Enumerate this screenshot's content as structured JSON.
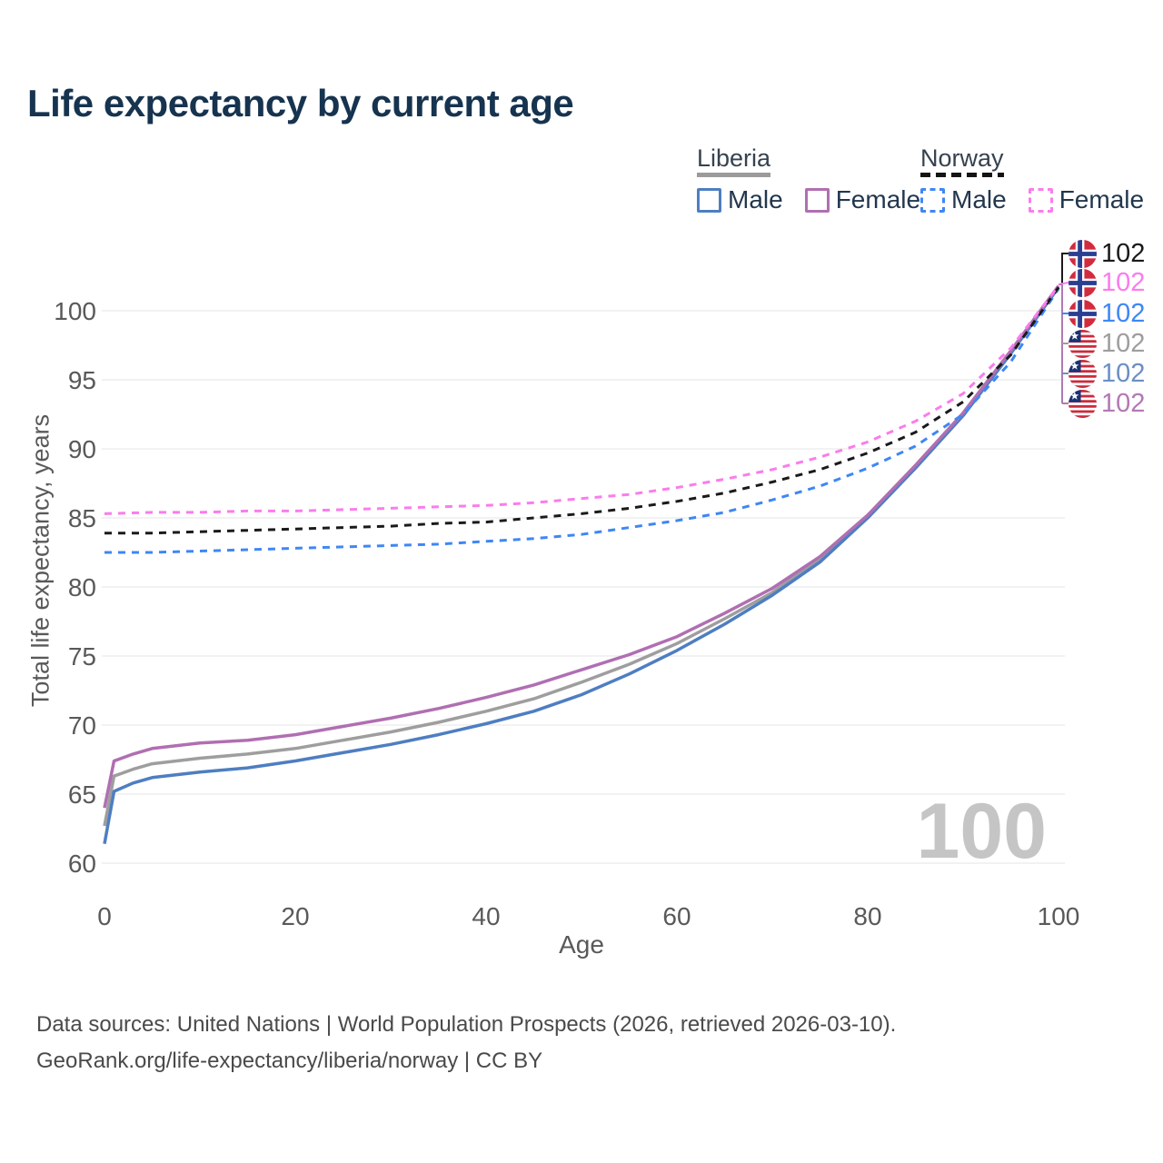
{
  "title": "Life expectancy by current age",
  "legend": {
    "groups": [
      {
        "label": "Liberia",
        "line_style": "solid",
        "underline_color": "#9b9b9b",
        "items": [
          {
            "label": "Male",
            "color": "#4e7ec1"
          },
          {
            "label": "Female",
            "color": "#b06fb2"
          }
        ]
      },
      {
        "label": "Norway",
        "line_style": "dashed",
        "underline_color": "#1a1a1a",
        "items": [
          {
            "label": "Male",
            "color": "#3e87f5"
          },
          {
            "label": "Female",
            "color": "#fb7cec"
          }
        ]
      }
    ]
  },
  "axes": {
    "x": {
      "label": "Age",
      "ticks": [
        0,
        20,
        40,
        60,
        80,
        100
      ],
      "range": [
        0,
        100
      ]
    },
    "y": {
      "label": "Total life expectancy, years",
      "ticks": [
        60,
        65,
        70,
        75,
        80,
        85,
        90,
        95,
        100
      ],
      "range": [
        58.5,
        103
      ]
    }
  },
  "watermark": "100",
  "end_labels": [
    {
      "flag": "norway",
      "series": "Norway Both sexes",
      "value": "102",
      "color": "#1a1a1a"
    },
    {
      "flag": "norway",
      "series": "Norway Female",
      "value": "102",
      "color": "#fb7cec"
    },
    {
      "flag": "norway",
      "series": "Norway Male",
      "value": "102",
      "color": "#3e87f5"
    },
    {
      "flag": "liberia",
      "series": "Liberia Both sexes",
      "value": "102",
      "color": "#9e9e9e"
    },
    {
      "flag": "liberia",
      "series": "Liberia Male",
      "value": "102",
      "color": "#6c8fc5"
    },
    {
      "flag": "liberia",
      "series": "Liberia Female",
      "value": "102",
      "color": "#b279b5"
    }
  ],
  "footer": {
    "line1": "Data sources: United Nations | World Population Prospects (2026, retrieved 2026-03-10).",
    "line2": "GeoRank.org/life-expectancy/liberia/norway | CC BY"
  },
  "chart_data": {
    "type": "line",
    "title": "Life expectancy by current age",
    "xlabel": "Age",
    "ylabel": "Total life expectancy, years",
    "xlim": [
      0,
      100
    ],
    "ylim": [
      58.5,
      103
    ],
    "grid": "horizontal",
    "legend_position": "top-right",
    "series": [
      {
        "name": "Liberia Both sexes",
        "country": "Liberia",
        "sex": "both",
        "color": "#9e9e9e",
        "dashed": false,
        "points": [
          [
            0,
            62.7
          ],
          [
            1,
            66.3
          ],
          [
            3,
            66.8
          ],
          [
            5,
            67.2
          ],
          [
            10,
            67.6
          ],
          [
            15,
            67.9
          ],
          [
            20,
            68.3
          ],
          [
            25,
            68.9
          ],
          [
            30,
            69.5
          ],
          [
            35,
            70.2
          ],
          [
            40,
            71.0
          ],
          [
            45,
            71.9
          ],
          [
            50,
            73.1
          ],
          [
            55,
            74.4
          ],
          [
            60,
            75.9
          ],
          [
            65,
            77.7
          ],
          [
            70,
            79.6
          ],
          [
            75,
            82.0
          ],
          [
            80,
            85.1
          ],
          [
            85,
            88.7
          ],
          [
            90,
            92.5
          ],
          [
            95,
            97.0
          ],
          [
            100,
            101.7
          ]
        ]
      },
      {
        "name": "Liberia Male",
        "country": "Liberia",
        "sex": "male",
        "color": "#4e7ec1",
        "dashed": false,
        "points": [
          [
            0,
            61.4
          ],
          [
            1,
            65.2
          ],
          [
            3,
            65.8
          ],
          [
            5,
            66.2
          ],
          [
            10,
            66.6
          ],
          [
            15,
            66.9
          ],
          [
            20,
            67.4
          ],
          [
            25,
            68.0
          ],
          [
            30,
            68.6
          ],
          [
            35,
            69.3
          ],
          [
            40,
            70.1
          ],
          [
            45,
            71.0
          ],
          [
            50,
            72.2
          ],
          [
            55,
            73.7
          ],
          [
            60,
            75.4
          ],
          [
            65,
            77.3
          ],
          [
            70,
            79.4
          ],
          [
            75,
            81.8
          ],
          [
            80,
            85.0
          ],
          [
            85,
            88.6
          ],
          [
            90,
            92.4
          ],
          [
            95,
            96.9
          ],
          [
            100,
            101.7
          ]
        ]
      },
      {
        "name": "Liberia Female",
        "country": "Liberia",
        "sex": "female",
        "color": "#b06fb2",
        "dashed": false,
        "points": [
          [
            0,
            64.0
          ],
          [
            1,
            67.4
          ],
          [
            3,
            67.9
          ],
          [
            5,
            68.3
          ],
          [
            10,
            68.7
          ],
          [
            15,
            68.9
          ],
          [
            20,
            69.3
          ],
          [
            25,
            69.9
          ],
          [
            30,
            70.5
          ],
          [
            35,
            71.2
          ],
          [
            40,
            72.0
          ],
          [
            45,
            72.9
          ],
          [
            50,
            74.0
          ],
          [
            55,
            75.1
          ],
          [
            60,
            76.4
          ],
          [
            65,
            78.1
          ],
          [
            70,
            79.9
          ],
          [
            75,
            82.2
          ],
          [
            80,
            85.2
          ],
          [
            85,
            88.8
          ],
          [
            90,
            92.6
          ],
          [
            95,
            97.1
          ],
          [
            100,
            101.8
          ]
        ]
      },
      {
        "name": "Norway Male",
        "country": "Norway",
        "sex": "male",
        "color": "#3e87f5",
        "dashed": true,
        "points": [
          [
            0,
            82.5
          ],
          [
            5,
            82.5
          ],
          [
            10,
            82.6
          ],
          [
            15,
            82.7
          ],
          [
            20,
            82.8
          ],
          [
            25,
            82.9
          ],
          [
            30,
            83.0
          ],
          [
            35,
            83.1
          ],
          [
            40,
            83.3
          ],
          [
            45,
            83.5
          ],
          [
            50,
            83.8
          ],
          [
            55,
            84.3
          ],
          [
            60,
            84.8
          ],
          [
            65,
            85.4
          ],
          [
            70,
            86.3
          ],
          [
            75,
            87.3
          ],
          [
            80,
            88.6
          ],
          [
            85,
            90.2
          ],
          [
            90,
            92.5
          ],
          [
            95,
            96.3
          ],
          [
            100,
            101.6
          ]
        ]
      },
      {
        "name": "Norway Both sexes",
        "country": "Norway",
        "sex": "both",
        "color": "#1a1a1a",
        "dashed": true,
        "points": [
          [
            0,
            83.9
          ],
          [
            5,
            83.9
          ],
          [
            10,
            84.0
          ],
          [
            15,
            84.1
          ],
          [
            20,
            84.2
          ],
          [
            25,
            84.3
          ],
          [
            30,
            84.4
          ],
          [
            35,
            84.6
          ],
          [
            40,
            84.7
          ],
          [
            45,
            85.0
          ],
          [
            50,
            85.3
          ],
          [
            55,
            85.7
          ],
          [
            60,
            86.2
          ],
          [
            65,
            86.8
          ],
          [
            70,
            87.6
          ],
          [
            75,
            88.5
          ],
          [
            80,
            89.7
          ],
          [
            85,
            91.2
          ],
          [
            90,
            93.4
          ],
          [
            95,
            96.8
          ],
          [
            100,
            101.7
          ]
        ]
      },
      {
        "name": "Norway Female",
        "country": "Norway",
        "sex": "female",
        "color": "#fb7cec",
        "dashed": true,
        "points": [
          [
            0,
            85.3
          ],
          [
            5,
            85.4
          ],
          [
            10,
            85.4
          ],
          [
            15,
            85.5
          ],
          [
            20,
            85.5
          ],
          [
            25,
            85.6
          ],
          [
            30,
            85.7
          ],
          [
            35,
            85.8
          ],
          [
            40,
            85.9
          ],
          [
            45,
            86.1
          ],
          [
            50,
            86.4
          ],
          [
            55,
            86.7
          ],
          [
            60,
            87.2
          ],
          [
            65,
            87.8
          ],
          [
            70,
            88.5
          ],
          [
            75,
            89.4
          ],
          [
            80,
            90.5
          ],
          [
            85,
            92.0
          ],
          [
            90,
            94.0
          ],
          [
            95,
            97.3
          ],
          [
            100,
            101.8
          ]
        ]
      }
    ]
  }
}
